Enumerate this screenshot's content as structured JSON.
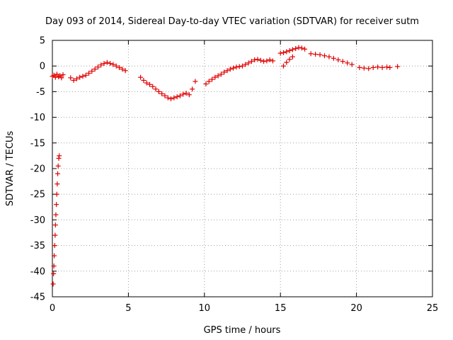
{
  "chart_data": {
    "type": "scatter",
    "title": "Day 093 of 2014, Sidereal Day-to-day VTEC variation (SDTVAR) for receiver sutm",
    "xlabel": "GPS time / hours",
    "ylabel": "SDTVAR / TECUs",
    "xlim": [
      0,
      25
    ],
    "ylim": [
      -45,
      5
    ],
    "xticks": [
      0,
      5,
      10,
      15,
      20,
      25
    ],
    "yticks": [
      -45,
      -40,
      -35,
      -30,
      -25,
      -20,
      -15,
      -10,
      -5,
      0,
      5
    ],
    "grid": true,
    "marker": "+",
    "series": [
      {
        "name": "SDTVAR",
        "color": "#e00000",
        "points": [
          [
            0.0,
            -2.0
          ],
          [
            0.1,
            -1.8
          ],
          [
            0.2,
            -2.2
          ],
          [
            0.3,
            -1.6
          ],
          [
            0.4,
            -2.1
          ],
          [
            0.5,
            -1.9
          ],
          [
            0.6,
            -2.3
          ],
          [
            0.7,
            -1.7
          ],
          [
            0.05,
            -42.5
          ],
          [
            0.08,
            -40.5
          ],
          [
            0.1,
            -39.0
          ],
          [
            0.12,
            -37.0
          ],
          [
            0.15,
            -35.0
          ],
          [
            0.18,
            -33.0
          ],
          [
            0.2,
            -31.0
          ],
          [
            0.23,
            -29.0
          ],
          [
            0.26,
            -27.0
          ],
          [
            0.29,
            -25.0
          ],
          [
            0.32,
            -23.0
          ],
          [
            0.35,
            -21.0
          ],
          [
            0.38,
            -19.5
          ],
          [
            0.42,
            -18.0
          ],
          [
            0.45,
            -17.5
          ],
          [
            1.2,
            -2.3
          ],
          [
            1.4,
            -2.8
          ],
          [
            1.6,
            -2.5
          ],
          [
            1.8,
            -2.2
          ],
          [
            2.0,
            -2.0
          ],
          [
            2.2,
            -1.8
          ],
          [
            2.4,
            -1.4
          ],
          [
            2.6,
            -1.0
          ],
          [
            2.8,
            -0.6
          ],
          [
            3.0,
            -0.2
          ],
          [
            3.2,
            0.2
          ],
          [
            3.4,
            0.5
          ],
          [
            3.6,
            0.7
          ],
          [
            3.8,
            0.5
          ],
          [
            4.0,
            0.3
          ],
          [
            4.2,
            0.0
          ],
          [
            4.4,
            -0.3
          ],
          [
            4.6,
            -0.6
          ],
          [
            4.8,
            -0.9
          ],
          [
            5.8,
            -2.2
          ],
          [
            6.0,
            -2.8
          ],
          [
            6.2,
            -3.3
          ],
          [
            6.4,
            -3.6
          ],
          [
            6.6,
            -4.0
          ],
          [
            6.8,
            -4.5
          ],
          [
            7.0,
            -5.0
          ],
          [
            7.2,
            -5.4
          ],
          [
            7.4,
            -5.8
          ],
          [
            7.6,
            -6.2
          ],
          [
            7.8,
            -6.4
          ],
          [
            8.0,
            -6.2
          ],
          [
            8.2,
            -6.0
          ],
          [
            8.4,
            -5.8
          ],
          [
            8.6,
            -5.5
          ],
          [
            8.8,
            -5.3
          ],
          [
            9.0,
            -5.6
          ],
          [
            9.2,
            -4.5
          ],
          [
            9.4,
            -3.0
          ],
          [
            10.1,
            -3.5
          ],
          [
            10.3,
            -3.0
          ],
          [
            10.5,
            -2.6
          ],
          [
            10.7,
            -2.2
          ],
          [
            10.9,
            -1.9
          ],
          [
            11.1,
            -1.6
          ],
          [
            11.3,
            -1.2
          ],
          [
            11.5,
            -0.9
          ],
          [
            11.7,
            -0.6
          ],
          [
            11.9,
            -0.4
          ],
          [
            12.1,
            -0.2
          ],
          [
            12.3,
            -0.1
          ],
          [
            12.5,
            0.0
          ],
          [
            12.7,
            0.3
          ],
          [
            12.9,
            0.6
          ],
          [
            13.1,
            0.9
          ],
          [
            13.3,
            1.2
          ],
          [
            13.5,
            1.3
          ],
          [
            13.7,
            1.1
          ],
          [
            13.9,
            0.9
          ],
          [
            14.1,
            1.0
          ],
          [
            14.3,
            1.2
          ],
          [
            14.5,
            1.0
          ],
          [
            15.0,
            2.5
          ],
          [
            15.2,
            2.6
          ],
          [
            15.4,
            2.8
          ],
          [
            15.6,
            3.0
          ],
          [
            15.8,
            3.2
          ],
          [
            16.0,
            3.4
          ],
          [
            16.2,
            3.6
          ],
          [
            16.4,
            3.5
          ],
          [
            16.6,
            3.3
          ],
          [
            15.2,
            0.0
          ],
          [
            15.4,
            0.7
          ],
          [
            15.6,
            1.3
          ],
          [
            15.8,
            1.8
          ],
          [
            17.0,
            2.4
          ],
          [
            17.3,
            2.3
          ],
          [
            17.6,
            2.2
          ],
          [
            17.9,
            2.0
          ],
          [
            18.2,
            1.8
          ],
          [
            18.5,
            1.5
          ],
          [
            18.8,
            1.2
          ],
          [
            19.1,
            0.9
          ],
          [
            19.4,
            0.6
          ],
          [
            19.7,
            0.3
          ],
          [
            20.2,
            -0.3
          ],
          [
            20.5,
            -0.4
          ],
          [
            20.8,
            -0.5
          ],
          [
            21.1,
            -0.3
          ],
          [
            21.4,
            -0.2
          ],
          [
            21.7,
            -0.3
          ],
          [
            22.0,
            -0.2
          ],
          [
            22.2,
            -0.3
          ],
          [
            22.7,
            -0.1
          ]
        ]
      }
    ]
  }
}
